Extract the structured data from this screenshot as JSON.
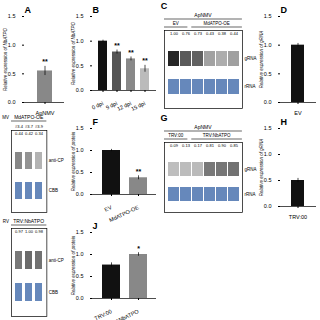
{
  "chart_data": [
    {
      "type": "bar",
      "title": "A",
      "ylabel": "Relative expression of NbATPO",
      "categories": [
        "ApNMV"
      ],
      "values": [
        0.55
      ],
      "errors": [
        0.08
      ],
      "color": "#888888",
      "ylim": [
        0.0,
        1.5
      ],
      "yticks": [
        {
          "value": 0.0,
          "label": "0.0"
        },
        0.5,
        {
          "value": 1.0,
          "label": "1.0"
        },
        1.5
      ],
      "significance": [
        "**"
      ]
    },
    {
      "type": "bar",
      "title": "B",
      "ylabel": "Relative expression of NbATPO",
      "categories": [
        "0 dpi",
        "9 dpi",
        "12 dpi",
        "15 dpi"
      ],
      "values": [
        1.0,
        0.78,
        0.64,
        0.44
      ],
      "errors": [
        0.02,
        0.04,
        0.04,
        0.07
      ],
      "colors": [
        "#111111",
        "#555555",
        "#888888",
        "#bbbbbb"
      ],
      "ylim": [
        0.0,
        1.5
      ],
      "yticks": [
        {
          "value": 0.0,
          "label": "0.0"
        },
        0.5,
        {
          "value": 1.0,
          "label": "1.0"
        },
        1.5
      ],
      "significance": [
        null,
        "**",
        "**",
        "**"
      ]
    },
    {
      "type": "blot",
      "title": "C",
      "top_label": "ApNMV",
      "groups": [
        "EV",
        "MdATPO-OE"
      ],
      "band_label": "gRNA",
      "control_label": "rRNA",
      "control_color": "#6688bb",
      "values": [
        1.0,
        0.76,
        0.73,
        0.43,
        0.38,
        0.44
      ],
      "lane_labels": [
        "1.00",
        "0.76",
        "0.73",
        "0.43",
        "0.38",
        "0.44"
      ]
    },
    {
      "type": "bar",
      "title": "D",
      "ylabel": "Relative expression of gRNA",
      "categories": [
        "EV"
      ],
      "values": [
        1.0
      ],
      "errors": [
        0.03
      ],
      "color": "#111111",
      "ylim": [
        0.0,
        1.5
      ],
      "yticks": [
        {
          "value": 0.0,
          "label": "0.0"
        },
        0.5,
        {
          "value": 1.0,
          "label": "1.0"
        },
        1.5
      ]
    },
    {
      "type": "blot",
      "corner_label": "MV",
      "top_label": "MdATPO-OE",
      "lane_sublabels": [
        "#3.4",
        "#3.7",
        "#3.9"
      ],
      "band_label": "anti-CP",
      "control_label": "CBB",
      "control_color": "#6688bb",
      "values": [
        0.55,
        0.5,
        0.35
      ],
      "lane_labels": [
        "0.44",
        "0.42",
        "0.34"
      ]
    },
    {
      "type": "bar",
      "title": "F",
      "ylabel": "Relative expression of protein",
      "categories": [
        "EV",
        "MdATPO-OE"
      ],
      "values": [
        1.0,
        0.38
      ],
      "errors": [
        0.025,
        0.045
      ],
      "colors": [
        "#111111",
        "#888888"
      ],
      "ylim": [
        0.0,
        1.5
      ],
      "yticks": [
        {
          "value": 0.0,
          "label": "0.0"
        },
        0.5,
        {
          "value": 1.0,
          "label": "1.0"
        },
        1.5
      ],
      "significance": [
        null,
        "**"
      ]
    },
    {
      "type": "blot",
      "title": "G",
      "top_label": "ApNMV",
      "groups": [
        "TRV:00",
        "TRV:NbATPO"
      ],
      "band_label": "gRNA",
      "control_label": "rRNA",
      "control_color": "#6688bb",
      "values": [
        0.3,
        0.31,
        0.32,
        0.62,
        0.63,
        0.65
      ],
      "lane_labels": [
        "0.09",
        "0.13",
        "0.17",
        "0.81",
        "0.90",
        "0.85"
      ]
    },
    {
      "type": "bar",
      "title": "H",
      "ylabel": "Relative expression of gRNA",
      "categories": [
        "TRV:00"
      ],
      "values": [
        0.5
      ],
      "errors": [
        0.04
      ],
      "color": "#111111",
      "ylim": [
        0.0,
        1.5
      ],
      "yticks": [
        {
          "value": 0.0,
          "label": "0.0"
        },
        0.5,
        {
          "value": 1.0,
          "label": "1.0"
        },
        1.5
      ]
    },
    {
      "type": "blot",
      "corner_label": "RV",
      "top_label": "TRV:NbATPO",
      "band_label": "anti-CP",
      "control_label": "CBB",
      "control_color": "#6688bb",
      "values": [
        0.62,
        0.68,
        0.65
      ],
      "lane_labels": [
        "0.97",
        "1.00",
        "0.98"
      ]
    },
    {
      "type": "bar",
      "title": "J",
      "ylabel": "Relative expression of protein",
      "categories": [
        "TRV:00",
        "TRV:NbATPO"
      ],
      "values": [
        0.76,
        1.0
      ],
      "errors": [
        0.05,
        0.04
      ],
      "colors": [
        "#111111",
        "#888888"
      ],
      "ylim": [
        0.0,
        1.5
      ],
      "yticks": [
        {
          "value": 0.0,
          "label": "0.0"
        },
        0.5,
        {
          "value": 1.0,
          "label": "1.0"
        },
        1.5
      ],
      "significance": [
        null,
        "*"
      ]
    }
  ]
}
